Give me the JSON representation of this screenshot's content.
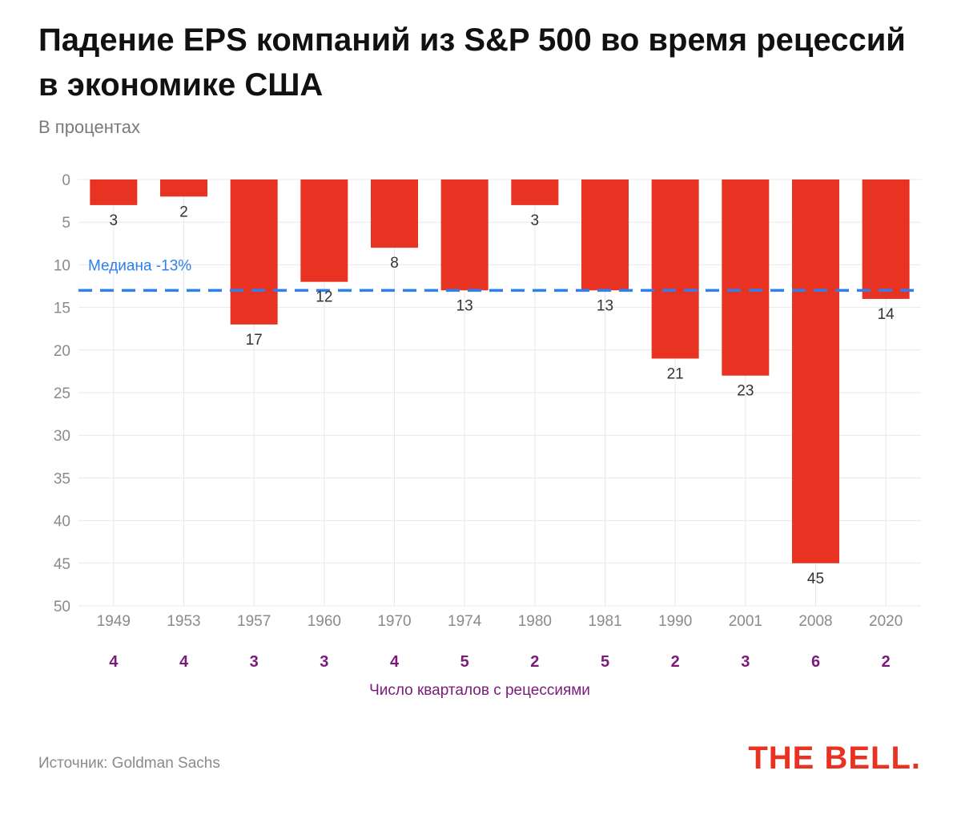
{
  "title": "Падение EPS компаний из S&P 500 во время рецессий в экономике США",
  "subtitle": "В процентах",
  "source": "Источник: Goldman Sachs",
  "logo": "THE BELL.",
  "colors": {
    "bar": "#e83323",
    "median": "#2f80ed",
    "quarters": "#7b1a7b",
    "logo": "#e83323",
    "axis_text": "#8a8a8a",
    "grid": "#e8e8e8"
  },
  "chart_data": {
    "type": "bar",
    "orientation": "downward",
    "categories": [
      "1949",
      "1953",
      "1957",
      "1960",
      "1970",
      "1974",
      "1980",
      "1981",
      "1990",
      "2001",
      "2008",
      "2020"
    ],
    "values": [
      3,
      2,
      17,
      12,
      8,
      13,
      3,
      13,
      21,
      23,
      45,
      14
    ],
    "value_labels": [
      "3",
      "2",
      "17",
      "12",
      "8",
      "13",
      "3",
      "13",
      "21",
      "23",
      "45",
      "14"
    ],
    "ylim": [
      0,
      50
    ],
    "yticks": [
      "0",
      "5",
      "10",
      "15",
      "20",
      "25",
      "30",
      "35",
      "40",
      "45",
      "50"
    ],
    "ytick_values": [
      0,
      5,
      10,
      15,
      20,
      25,
      30,
      35,
      40,
      45,
      50
    ],
    "median": {
      "value": 13,
      "label": "Медиана -13%"
    },
    "quarters": [
      "4",
      "4",
      "3",
      "3",
      "4",
      "5",
      "2",
      "5",
      "2",
      "3",
      "6",
      "2"
    ],
    "quarters_label": "Число кварталов с рецессиями"
  }
}
